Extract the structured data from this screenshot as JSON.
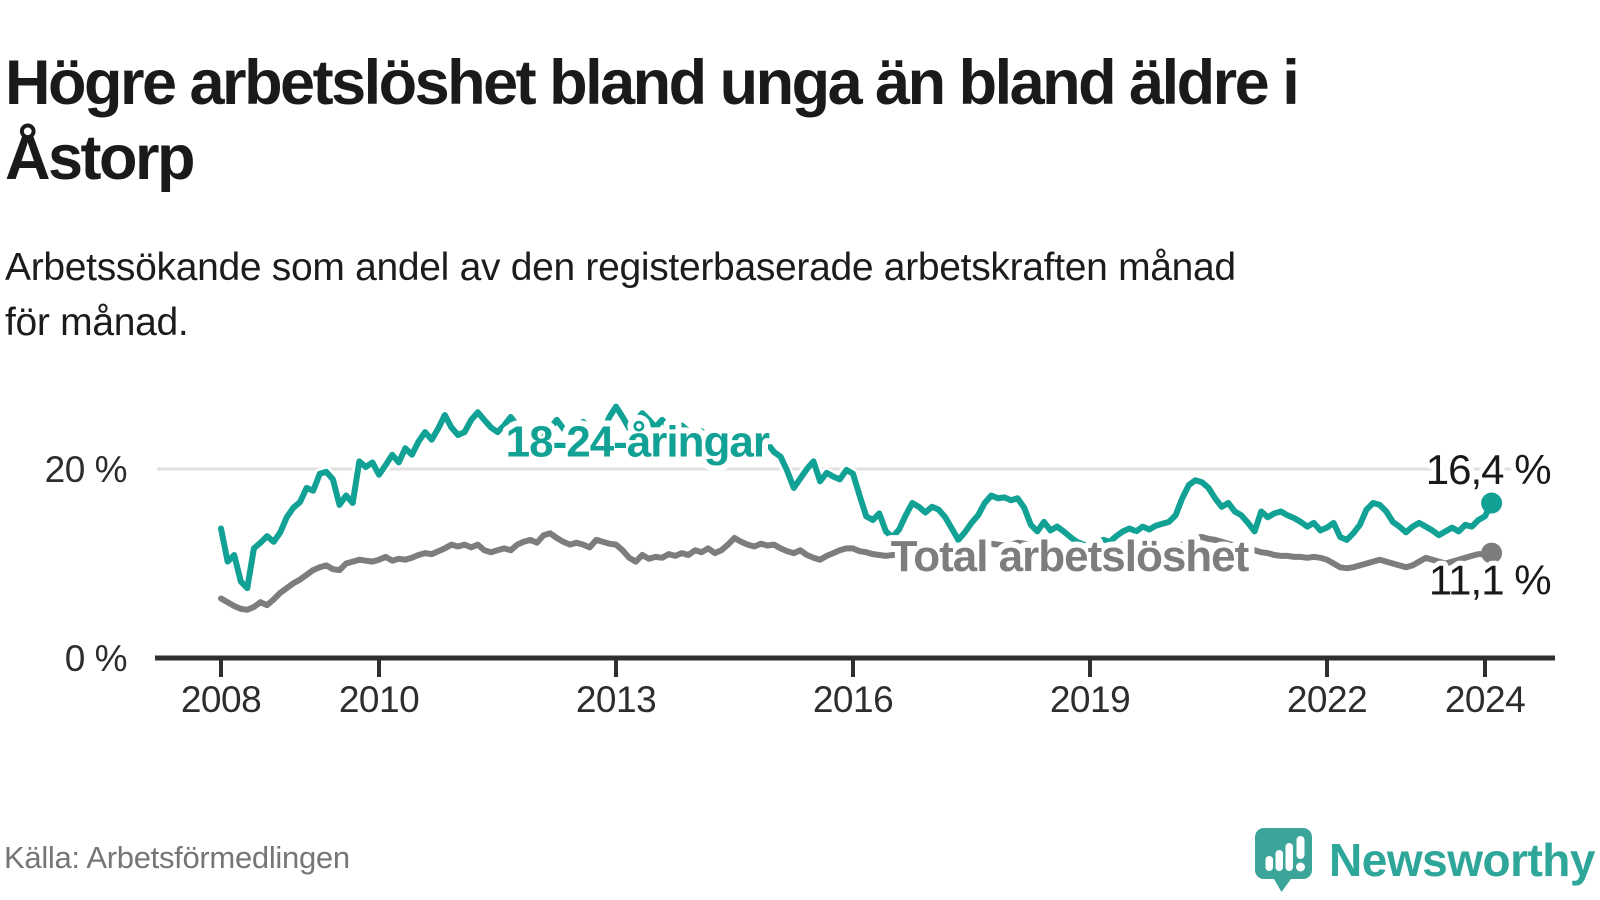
{
  "title": "Högre arbetslöshet bland unga än bland äldre i\nÅstorp",
  "subtitle": "Arbetssökande som andel av den registerbaserade arbetskraften månad\nför månad.",
  "source": "Källa: Arbetsförmedlingen",
  "branding": {
    "name": "Newsworthy",
    "logo_icon": "speech-bubble-bar-chart-exclamation",
    "icon_color": "#3ba59a",
    "text_color": "#2fa69a"
  },
  "colors": {
    "youth_line": "#12a195",
    "total_line": "#7d7d7d",
    "gridline": "#e0e0e0",
    "axis": "#2f2f2f",
    "value_text": "#191919",
    "tick_text": "#2d2d2d"
  },
  "chart_data": {
    "type": "line",
    "title": "Högre arbetslöshet bland unga än bland äldre i Åstorp",
    "subtitle": "Arbetssökande som andel av den registerbaserade arbetskraften månad för månad.",
    "unit": "%",
    "x_start_year": 2008,
    "x_frequency": "monthly",
    "x_end": "2024-02",
    "x_ticks": [
      2008,
      2010,
      2013,
      2016,
      2019,
      2022,
      2024
    ],
    "y_axis": {
      "ticks": [
        {
          "value": 0,
          "label": "0 %"
        },
        {
          "value": 20,
          "label": "20 %"
        }
      ],
      "range": [
        0,
        28.9
      ]
    },
    "grid": "horizontal-20-only",
    "legend_position": "inline-labels",
    "series": [
      {
        "name": "Total arbetslöshet",
        "color": "#7d7d7d",
        "label": {
          "text": "Total arbetslöshet",
          "x": 2018.74,
          "y": 10.8
        },
        "end_label": {
          "text": "11,1 %",
          "x": 2024.83,
          "y": 8.2
        },
        "end_value": 11.1,
        "values": [
          6.3,
          5.9,
          5.5,
          5.2,
          5.1,
          5.4,
          5.9,
          5.6,
          6.2,
          6.9,
          7.4,
          7.9,
          8.3,
          8.8,
          9.3,
          9.6,
          9.8,
          9.4,
          9.3,
          10.0,
          10.2,
          10.4,
          10.3,
          10.2,
          10.4,
          10.7,
          10.3,
          10.5,
          10.4,
          10.6,
          10.9,
          11.1,
          11.0,
          11.3,
          11.6,
          12.0,
          11.8,
          12.0,
          11.7,
          12.0,
          11.4,
          11.2,
          11.4,
          11.6,
          11.4,
          12.0,
          12.3,
          12.5,
          12.2,
          13.0,
          13.2,
          12.7,
          12.3,
          12.0,
          12.2,
          12.0,
          11.7,
          12.5,
          12.3,
          12.1,
          12.0,
          11.4,
          10.6,
          10.2,
          10.9,
          10.5,
          10.7,
          10.6,
          11.0,
          10.8,
          11.1,
          10.9,
          11.4,
          11.2,
          11.6,
          11.1,
          11.4,
          12.0,
          12.7,
          12.3,
          12.0,
          11.8,
          12.1,
          11.9,
          12.0,
          11.6,
          11.3,
          11.1,
          11.4,
          10.9,
          10.6,
          10.4,
          10.8,
          11.1,
          11.4,
          11.6,
          11.6,
          11.3,
          11.2,
          11.0,
          10.9,
          10.8,
          10.9,
          11.0,
          11.2,
          11.3,
          11.2,
          11.1,
          11.0,
          11.2,
          11.4,
          11.3,
          11.5,
          11.7,
          11.6,
          11.8,
          12.0,
          12.1,
          12.0,
          11.9,
          12.0,
          12.2,
          12.1,
          11.9,
          11.7,
          11.6,
          11.4,
          11.3,
          11.2,
          11.1,
          11.0,
          10.9,
          10.8,
          10.9,
          10.8,
          10.9,
          11.0,
          11.1,
          11.2,
          11.1,
          11.2,
          11.3,
          11.2,
          11.4,
          11.4,
          11.6,
          12.0,
          12.4,
          12.7,
          12.8,
          12.6,
          12.5,
          12.3,
          12.1,
          11.9,
          11.8,
          11.6,
          11.4,
          11.2,
          11.1,
          10.9,
          10.8,
          10.8,
          10.7,
          10.7,
          10.6,
          10.7,
          10.6,
          10.4,
          10.0,
          9.6,
          9.5,
          9.6,
          9.8,
          10.0,
          10.2,
          10.4,
          10.2,
          10.0,
          9.8,
          9.6,
          9.8,
          10.2,
          10.6,
          10.4,
          10.2,
          10.0,
          10.2,
          10.4,
          10.6,
          10.8,
          11.0,
          11.0,
          11.1
        ]
      },
      {
        "name": "18-24-åringar",
        "color": "#12a195",
        "label": {
          "text": "18-24-åringar",
          "x": 2013.27,
          "y": 22.9
        },
        "end_label": {
          "text": "16,4 %",
          "x": 2024.83,
          "y": 19.9
        },
        "end_value": 16.4,
        "values": [
          13.7,
          10.2,
          10.9,
          8.1,
          7.4,
          11.6,
          12.2,
          12.9,
          12.3,
          13.3,
          14.9,
          15.9,
          16.5,
          18.0,
          17.7,
          19.5,
          19.7,
          18.9,
          16.2,
          17.2,
          16.4,
          20.8,
          20.2,
          20.7,
          19.4,
          20.4,
          21.5,
          20.7,
          22.2,
          21.5,
          22.9,
          23.9,
          23.1,
          24.3,
          25.7,
          24.4,
          23.6,
          23.9,
          25.2,
          26.0,
          25.2,
          24.4,
          23.9,
          24.6,
          25.5,
          24.6,
          23.6,
          22.9,
          22.3,
          23.3,
          24.3,
          25.2,
          24.3,
          23.4,
          24.3,
          25.0,
          24.1,
          23.4,
          23.9,
          25.5,
          26.6,
          25.5,
          24.3,
          25.1,
          25.9,
          25.2,
          24.4,
          25.2,
          24.4,
          23.7,
          24.6,
          24.0,
          23.4,
          24.0,
          23.3,
          22.8,
          23.3,
          22.5,
          22.9,
          23.4,
          22.6,
          23.0,
          22.3,
          22.7,
          21.8,
          21.3,
          19.8,
          18.0,
          19.0,
          20.0,
          20.8,
          18.7,
          19.6,
          19.2,
          18.9,
          19.9,
          19.5,
          17.2,
          15.0,
          14.6,
          15.3,
          13.4,
          12.8,
          13.6,
          15.1,
          16.4,
          16.0,
          15.4,
          16.0,
          15.7,
          14.9,
          13.7,
          12.5,
          13.3,
          14.3,
          15.1,
          16.4,
          17.2,
          16.9,
          17.0,
          16.7,
          16.9,
          15.9,
          14.1,
          13.4,
          14.4,
          13.5,
          13.9,
          13.4,
          12.8,
          12.3,
          12.0,
          11.9,
          12.2,
          12.5,
          12.3,
          12.9,
          13.4,
          13.7,
          13.4,
          13.9,
          13.6,
          14.0,
          14.2,
          14.4,
          15.1,
          16.9,
          18.3,
          18.8,
          18.6,
          18.0,
          16.9,
          16.0,
          16.4,
          15.5,
          15.1,
          14.3,
          13.4,
          15.5,
          14.9,
          15.3,
          15.5,
          15.1,
          14.8,
          14.4,
          13.9,
          14.3,
          13.5,
          13.8,
          14.3,
          12.8,
          12.5,
          13.2,
          14.1,
          15.7,
          16.4,
          16.2,
          15.5,
          14.4,
          13.9,
          13.3,
          13.9,
          14.3,
          13.9,
          13.5,
          13.0,
          13.4,
          13.8,
          13.4,
          14.1,
          13.9,
          14.6,
          15.0,
          16.4
        ]
      }
    ]
  }
}
